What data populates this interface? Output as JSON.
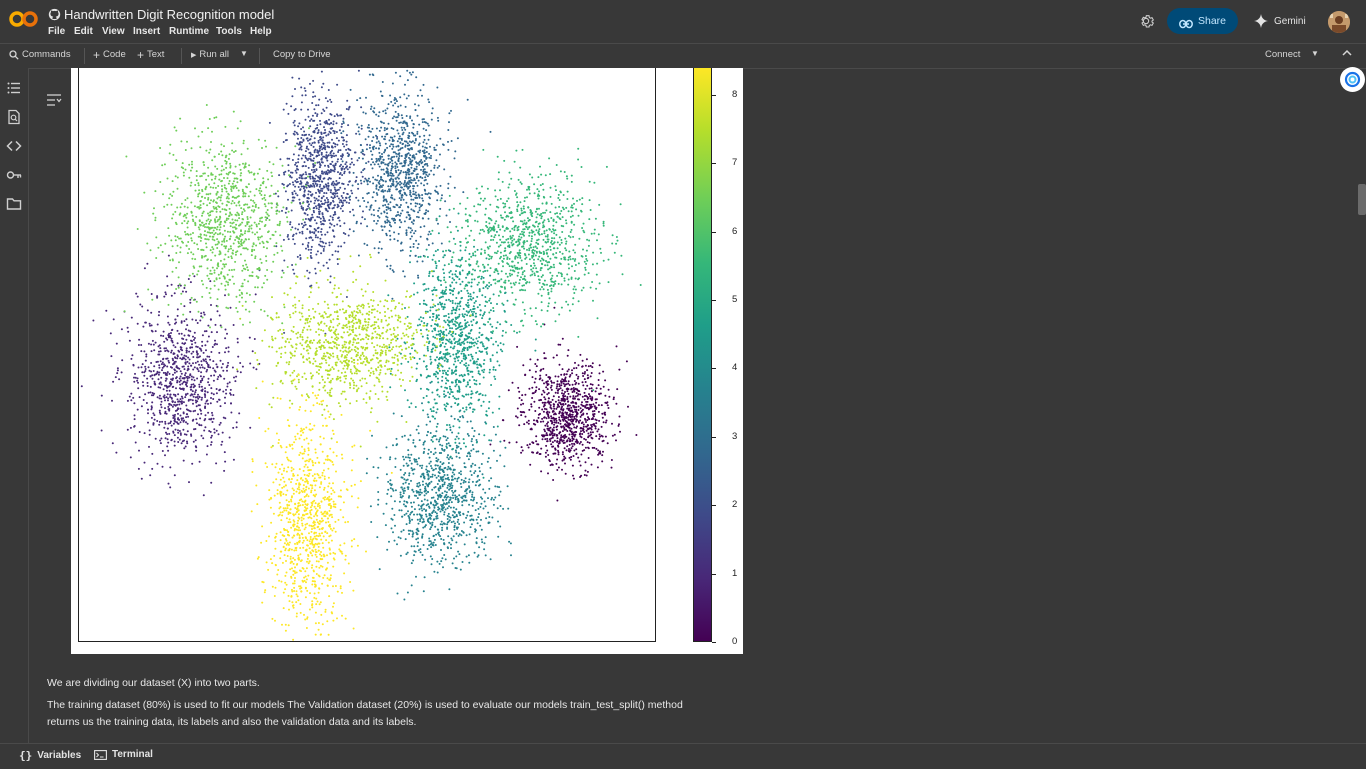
{
  "app": {
    "title": "Handwritten Digit Recognition model",
    "logo_text": "CO"
  },
  "menu": [
    "File",
    "Edit",
    "View",
    "Insert",
    "Runtime",
    "Tools",
    "Help"
  ],
  "header_actions": {
    "share_label": "Share",
    "gemini_label": "Gemini"
  },
  "toolbar": {
    "commands_label": "Commands",
    "code_label": "Code",
    "text_label": "Text",
    "run_all_label": "Run all",
    "copy_to_drive_label": "Copy to Drive",
    "connect_label": "Connect"
  },
  "colors": {
    "accent_share": "#004a77",
    "share_text": "#c2e7ff",
    "logo_orange": "#f9ab00",
    "logo_orange_dark": "#e8710a"
  },
  "chart_data": {
    "type": "scatter",
    "colormap": "viridis",
    "colorbar": {
      "ticks": [
        "0",
        "1",
        "2",
        "3",
        "4",
        "5",
        "6",
        "7",
        "8"
      ],
      "range": [
        0,
        9
      ]
    },
    "clusters": [
      {
        "label": 0,
        "x": 0.84,
        "y": 0.45
      },
      {
        "label": 1,
        "x": 0.14,
        "y": 0.38
      },
      {
        "label": 2,
        "x": 0.31,
        "y": 0.18
      },
      {
        "label": 3,
        "x": 0.57,
        "y": 0.2
      },
      {
        "label": 4,
        "x": 0.53,
        "y": 0.83
      },
      {
        "label": 5,
        "x": 0.65,
        "y": 0.55
      },
      {
        "label": 6,
        "x": 0.8,
        "y": 0.74
      },
      {
        "label": 7,
        "x": 0.26,
        "y": 0.76
      },
      {
        "label": 8,
        "x": 0.45,
        "y": 0.5
      },
      {
        "label": 9,
        "x": 0.42,
        "y": 0.86
      }
    ]
  },
  "markdown": {
    "line1": "We are dividing our dataset (X) into two parts.",
    "line2": "The training dataset (80%) is used to fit our models The Validation dataset (20%) is used to evaluate our models train_test_split() method",
    "line3": "returns us the training data, its labels and also the validation data and its labels."
  },
  "statusbar": {
    "variables_label": "Variables",
    "terminal_label": "Terminal"
  },
  "icons": [
    "github-icon",
    "settings-icon",
    "link-icon",
    "gemini-spark-icon",
    "search-icon",
    "plus-icon",
    "play-icon",
    "dropdown-icon",
    "chevron-up-icon",
    "toc-icon",
    "find-icon",
    "code-snippets-icon",
    "secrets-key-icon",
    "folder-icon",
    "output-toggle-icon",
    "variables-icon",
    "terminal-icon",
    "assistant-icon"
  ]
}
